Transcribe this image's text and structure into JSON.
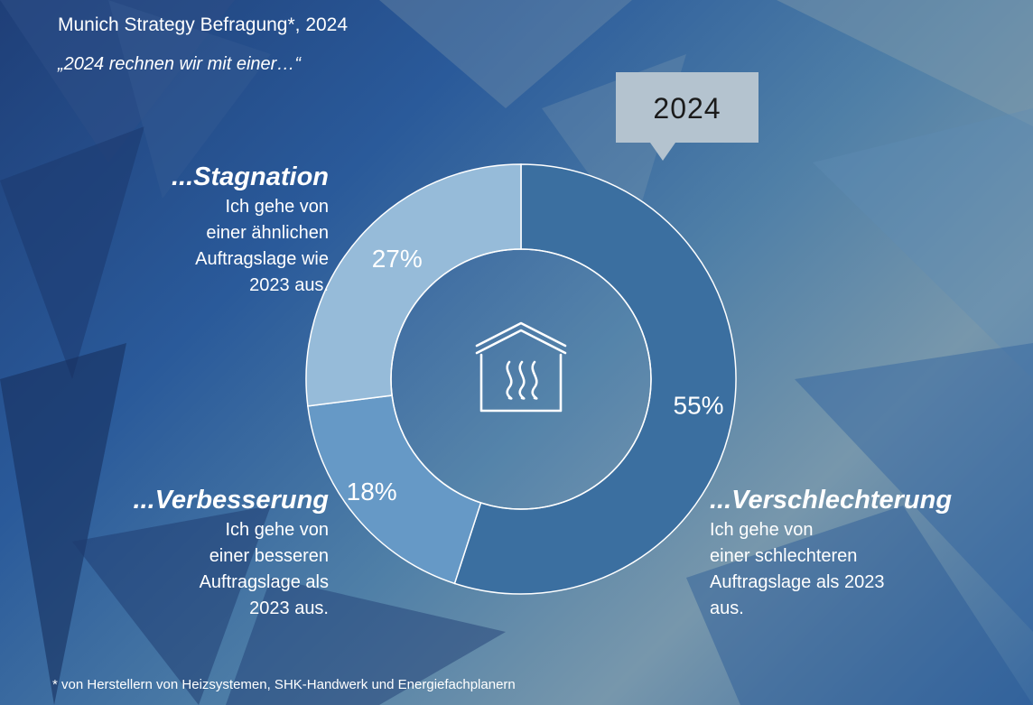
{
  "header": {
    "title": "Munich Strategy Befragung*, 2024",
    "subtitle": "„2024 rechnen wir mit einer…“"
  },
  "year_badge": "2024",
  "chart_data": {
    "type": "pie",
    "variant": "donut",
    "center_icon": "house-heating-icon",
    "slices": [
      {
        "key": "verschlechterung",
        "label": "...Verschlechterung",
        "value": 55,
        "display": "55%",
        "color": "#3b6fa0",
        "description": [
          "Ich gehe von",
          "einer schlechteren",
          "Auftragslage als 2023",
          "aus."
        ]
      },
      {
        "key": "verbesserung",
        "label": "...Verbesserung",
        "value": 18,
        "display": "18%",
        "color": "#6699c6",
        "description": [
          "Ich gehe von",
          "einer besseren",
          "Auftragslage als",
          "2023 aus."
        ]
      },
      {
        "key": "stagnation",
        "label": "...Stagnation",
        "value": 27,
        "display": "27%",
        "color": "#96bbd9",
        "description": [
          "Ich gehe von",
          "einer ähnlichen",
          "Auftragslage wie",
          "2023 aus."
        ]
      }
    ]
  },
  "footnote": "* von Herstellern von Heizsystemen, SHK-Handwerk und Energiefachplanern"
}
